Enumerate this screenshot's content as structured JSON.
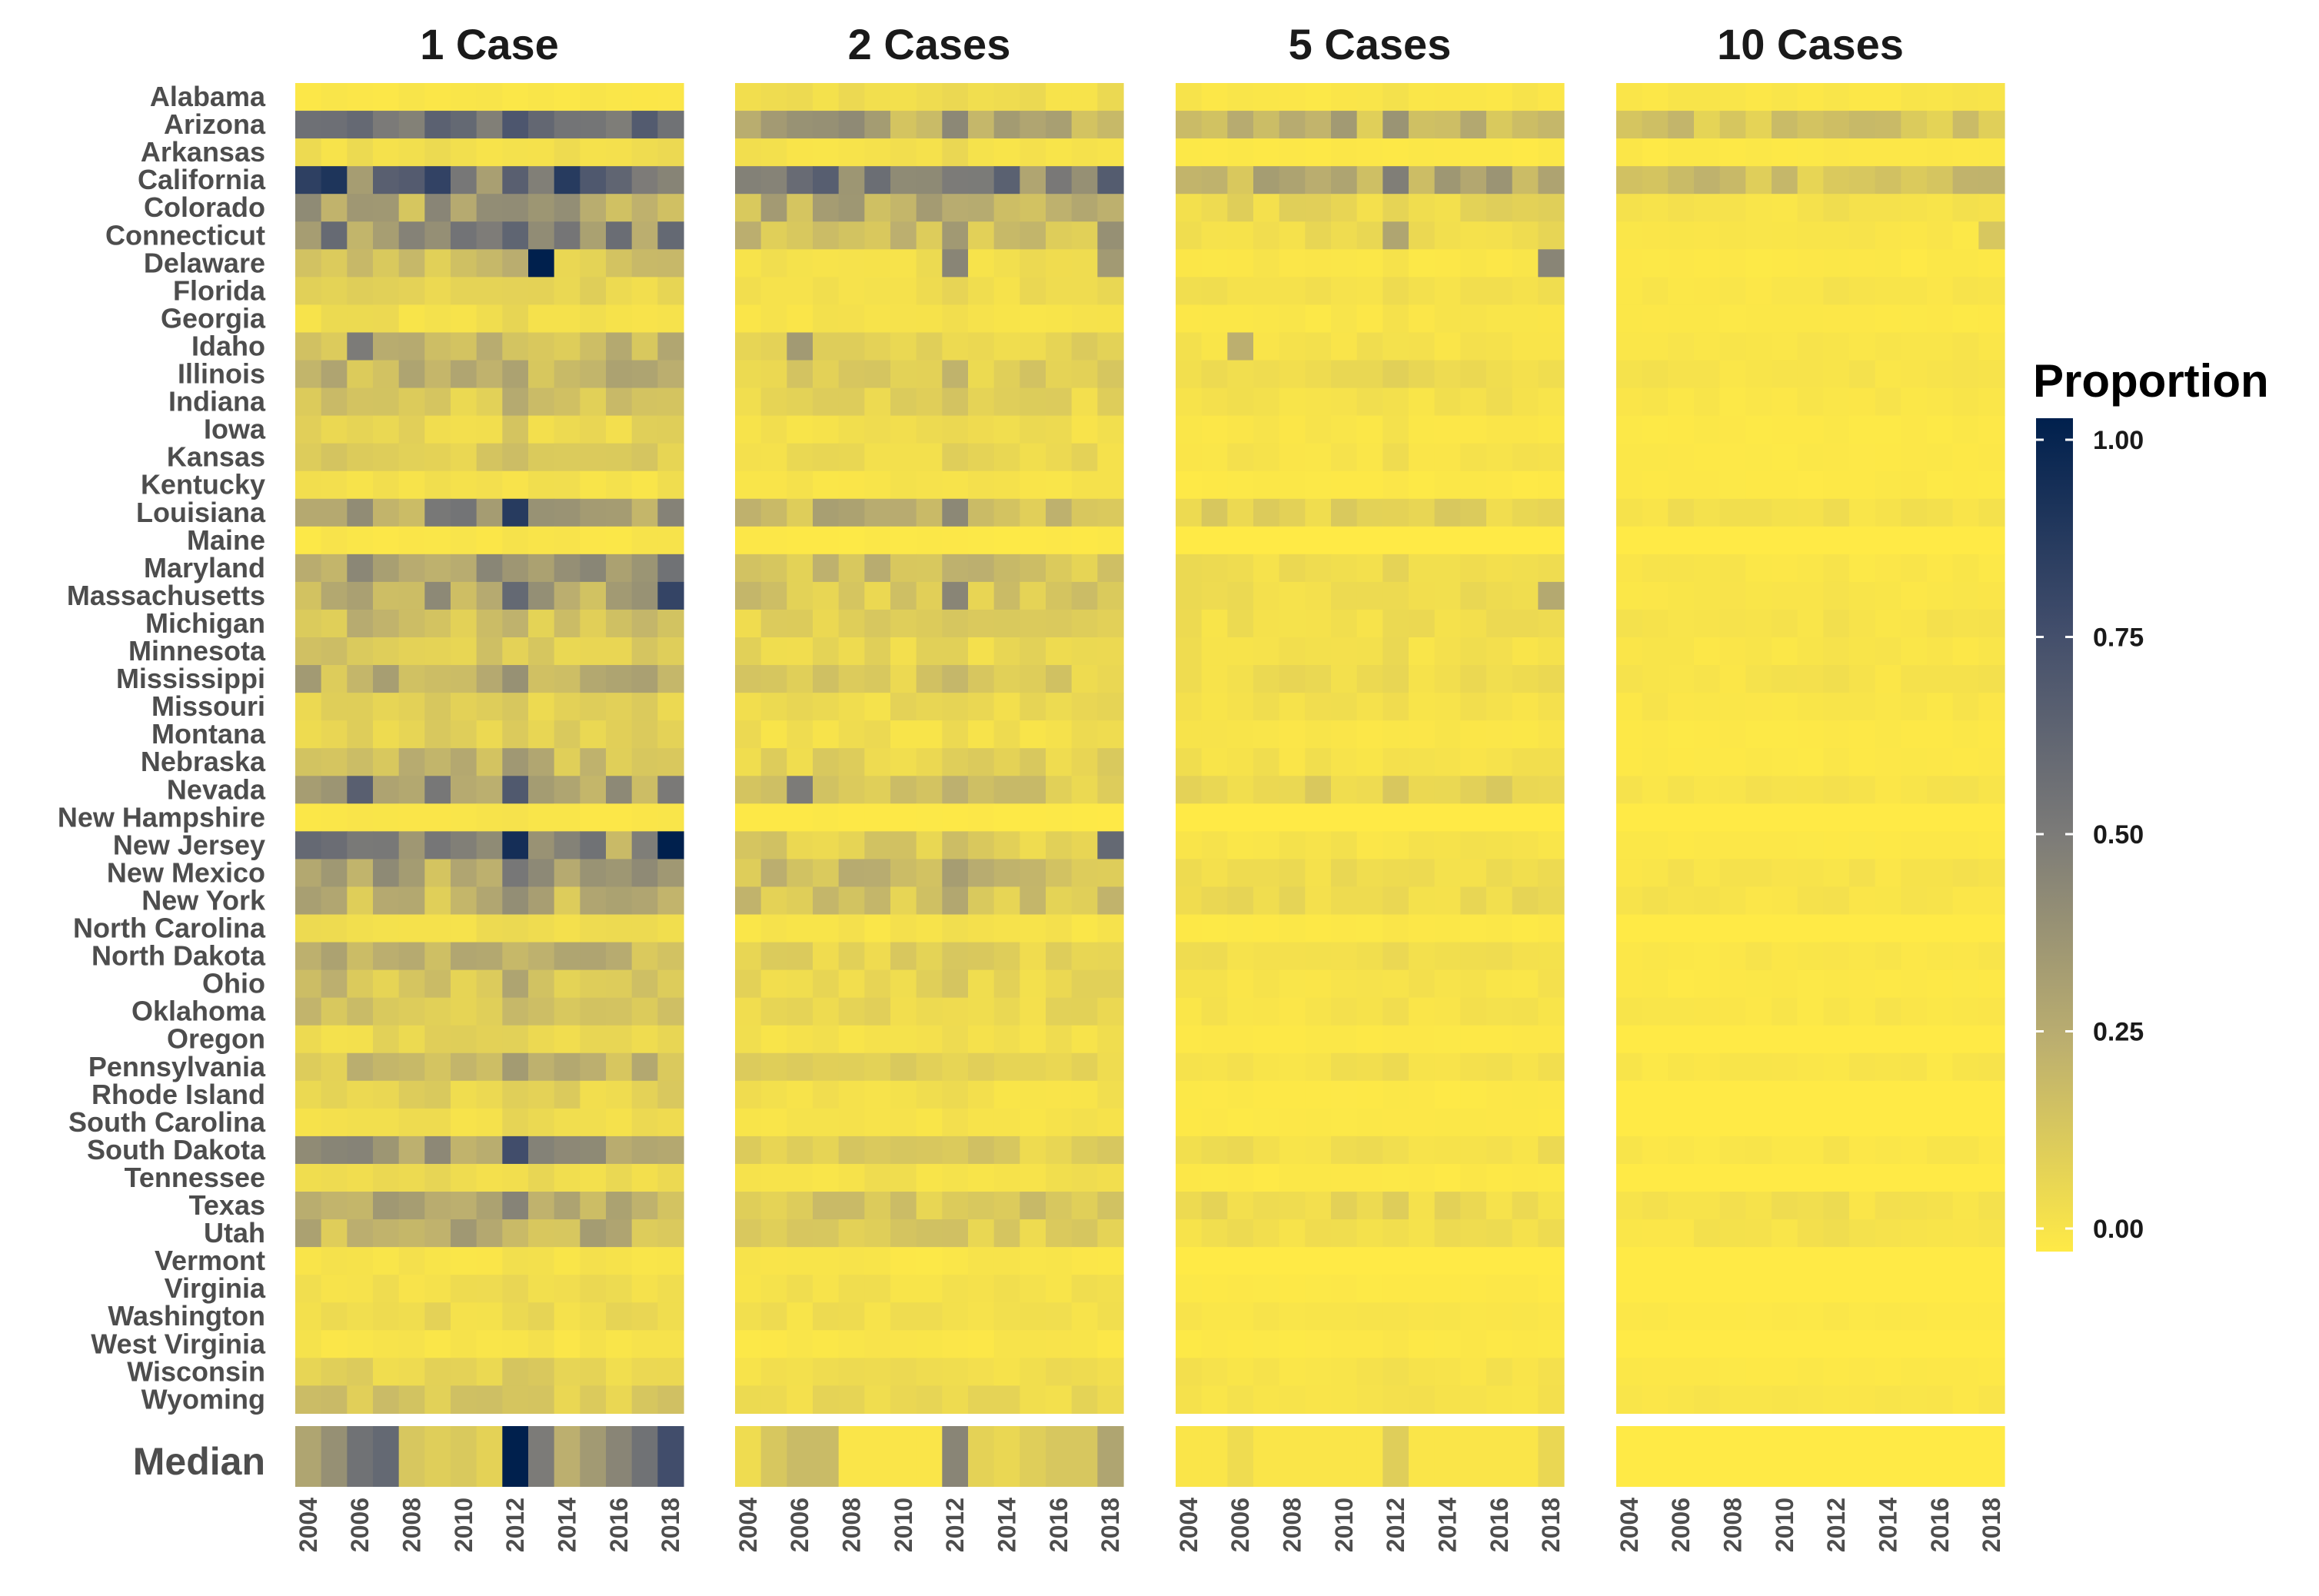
{
  "chart_data": {
    "type": "heatmap",
    "panels": [
      "1 Case",
      "2 Cases",
      "5 Cases",
      "10 Cases"
    ],
    "states": [
      "Alabama",
      "Arizona",
      "Arkansas",
      "California",
      "Colorado",
      "Connecticut",
      "Delaware",
      "Florida",
      "Georgia",
      "Idaho",
      "Illinois",
      "Indiana",
      "Iowa",
      "Kansas",
      "Kentucky",
      "Louisiana",
      "Maine",
      "Maryland",
      "Massachusetts",
      "Michigan",
      "Minnesota",
      "Mississippi",
      "Missouri",
      "Montana",
      "Nebraska",
      "Nevada",
      "New Hampshire",
      "New Jersey",
      "New Mexico",
      "New York",
      "North Carolina",
      "North Dakota",
      "Ohio",
      "Oklahoma",
      "Oregon",
      "Pennsylvania",
      "Rhode Island",
      "South Carolina",
      "South Dakota",
      "Tennessee",
      "Texas",
      "Utah",
      "Vermont",
      "Virginia",
      "Washington",
      "West Virginia",
      "Wisconsin",
      "Wyoming"
    ],
    "median_label": "Median",
    "years": [
      2004,
      2005,
      2006,
      2007,
      2008,
      2009,
      2010,
      2011,
      2012,
      2013,
      2014,
      2015,
      2016,
      2017,
      2018
    ],
    "x_tick_labels": [
      "2004",
      "2006",
      "2008",
      "2010",
      "2012",
      "2014",
      "2016",
      "2018"
    ],
    "legend": {
      "title": "Proportion",
      "ticks": [
        "1.00",
        "0.75",
        "0.50",
        "0.25",
        "0.00"
      ],
      "range": [
        0,
        1
      ],
      "colors": [
        "#FFEA46",
        "#BCAF6F",
        "#7C7B78",
        "#414D6B",
        "#00204D"
      ]
    },
    "state_levels": {
      "1 Case": {
        "Alabama": 0.02,
        "Arizona": 0.45,
        "Arkansas": 0.05,
        "California": 0.6,
        "Colorado": 0.3,
        "Connecticut": 0.4,
        "Delaware": 0.15,
        "Florida": 0.08,
        "Georgia": 0.05,
        "Idaho": 0.2,
        "Illinois": 0.22,
        "Indiana": 0.14,
        "Iowa": 0.08,
        "Kansas": 0.12,
        "Kentucky": 0.04,
        "Louisiana": 0.38,
        "Maine": 0.02,
        "Maryland": 0.3,
        "Massachusetts": 0.3,
        "Michigan": 0.18,
        "Minnesota": 0.14,
        "Mississippi": 0.25,
        "Missouri": 0.1,
        "Montana": 0.1,
        "Nebraska": 0.2,
        "Nevada": 0.35,
        "New Hampshire": 0.02,
        "New Jersey": 0.4,
        "New Mexico": 0.3,
        "New York": 0.22,
        "North Carolina": 0.05,
        "North Dakota": 0.22,
        "Ohio": 0.18,
        "Oklahoma": 0.16,
        "Oregon": 0.08,
        "Pennsylvania": 0.2,
        "Rhode Island": 0.1,
        "South Carolina": 0.05,
        "South Dakota": 0.32,
        "Tennessee": 0.06,
        "Texas": 0.24,
        "Utah": 0.24,
        "Vermont": 0.03,
        "Virginia": 0.05,
        "Washington": 0.07,
        "West Virginia": 0.03,
        "Wisconsin": 0.1,
        "Wyoming": 0.14
      },
      "2 Cases": {
        "Alabama": 0.05,
        "Arizona": 0.3,
        "Arkansas": 0.04,
        "California": 0.45,
        "Colorado": 0.25,
        "Connecticut": 0.18,
        "Delaware": 0.05,
        "Florida": 0.06,
        "Georgia": 0.03,
        "Idaho": 0.1,
        "Illinois": 0.12,
        "Indiana": 0.09,
        "Iowa": 0.05,
        "Kansas": 0.07,
        "Kentucky": 0.03,
        "Louisiana": 0.22,
        "Maine": 0.01,
        "Maryland": 0.18,
        "Massachusetts": 0.15,
        "Michigan": 0.1,
        "Minnesota": 0.08,
        "Mississippi": 0.12,
        "Missouri": 0.07,
        "Montana": 0.05,
        "Nebraska": 0.1,
        "Nevada": 0.14,
        "New Hampshire": 0.01,
        "New Jersey": 0.12,
        "New Mexico": 0.18,
        "New York": 0.16,
        "North Carolina": 0.03,
        "North Dakota": 0.1,
        "Ohio": 0.08,
        "Oklahoma": 0.08,
        "Oregon": 0.04,
        "Pennsylvania": 0.1,
        "Rhode Island": 0.04,
        "South Carolina": 0.03,
        "South Dakota": 0.12,
        "Tennessee": 0.04,
        "Texas": 0.14,
        "Utah": 0.12,
        "Vermont": 0.02,
        "Virginia": 0.04,
        "Washington": 0.05,
        "West Virginia": 0.02,
        "Wisconsin": 0.05,
        "Wyoming": 0.07
      },
      "5 Cases": {
        "Alabama": 0.02,
        "Arizona": 0.22,
        "Arkansas": 0.01,
        "California": 0.25,
        "Colorado": 0.08,
        "Connecticut": 0.06,
        "Delaware": 0.02,
        "Florida": 0.04,
        "Georgia": 0.02,
        "Idaho": 0.04,
        "Illinois": 0.06,
        "Indiana": 0.04,
        "Iowa": 0.02,
        "Kansas": 0.03,
        "Kentucky": 0.01,
        "Louisiana": 0.1,
        "Maine": 0.0,
        "Maryland": 0.05,
        "Massachusetts": 0.06,
        "Michigan": 0.05,
        "Minnesota": 0.04,
        "Mississippi": 0.06,
        "Missouri": 0.04,
        "Montana": 0.02,
        "Nebraska": 0.04,
        "Nevada": 0.1,
        "New Hampshire": 0.0,
        "New Jersey": 0.03,
        "New Mexico": 0.06,
        "New York": 0.07,
        "North Carolina": 0.01,
        "North Dakota": 0.05,
        "Ohio": 0.03,
        "Oklahoma": 0.03,
        "Oregon": 0.01,
        "Pennsylvania": 0.04,
        "Rhode Island": 0.01,
        "South Carolina": 0.01,
        "South Dakota": 0.05,
        "Tennessee": 0.01,
        "Texas": 0.07,
        "Utah": 0.05,
        "Vermont": 0.0,
        "Virginia": 0.01,
        "Washington": 0.02,
        "West Virginia": 0.01,
        "Wisconsin": 0.03,
        "Wyoming": 0.03
      },
      "10 Cases": {
        "Alabama": 0.02,
        "Arizona": 0.15,
        "Arkansas": 0.01,
        "California": 0.16,
        "Colorado": 0.03,
        "Connecticut": 0.02,
        "Delaware": 0.01,
        "Florida": 0.02,
        "Georgia": 0.01,
        "Idaho": 0.02,
        "Illinois": 0.03,
        "Indiana": 0.02,
        "Iowa": 0.01,
        "Kansas": 0.01,
        "Kentucky": 0.01,
        "Louisiana": 0.04,
        "Maine": 0.0,
        "Maryland": 0.02,
        "Massachusetts": 0.02,
        "Michigan": 0.03,
        "Minnesota": 0.02,
        "Mississippi": 0.03,
        "Missouri": 0.02,
        "Montana": 0.01,
        "Nebraska": 0.01,
        "Nevada": 0.03,
        "New Hampshire": 0.0,
        "New Jersey": 0.01,
        "New Mexico": 0.03,
        "New York": 0.03,
        "North Carolina": 0.0,
        "North Dakota": 0.02,
        "Ohio": 0.01,
        "Oklahoma": 0.02,
        "Oregon": 0.0,
        "Pennsylvania": 0.02,
        "Rhode Island": 0.0,
        "South Carolina": 0.0,
        "South Dakota": 0.02,
        "Tennessee": 0.0,
        "Texas": 0.04,
        "Utah": 0.03,
        "Vermont": 0.0,
        "Virginia": 0.0,
        "Washington": 0.01,
        "West Virginia": 0.0,
        "Wisconsin": 0.01,
        "Wyoming": 0.02
      }
    },
    "highlights": {
      "1 Case": [
        [
          "Delaware",
          2013,
          1.0
        ],
        [
          "New Jersey",
          2018,
          1.0
        ],
        [
          "New Jersey",
          2012,
          0.92
        ],
        [
          "Arizona",
          2012,
          0.7
        ],
        [
          "Louisiana",
          2012,
          0.85
        ],
        [
          "Massachusetts",
          2018,
          0.8
        ],
        [
          "Nevada",
          2006,
          0.65
        ],
        [
          "Connecticut",
          2018,
          0.6
        ],
        [
          "South Dakota",
          2012,
          0.75
        ],
        [
          "California",
          2012,
          0.65
        ],
        [
          "California",
          2007,
          0.65
        ],
        [
          "Maryland",
          2018,
          0.55
        ],
        [
          "Massachusetts",
          2012,
          0.6
        ],
        [
          "New Jersey",
          2015,
          0.55
        ],
        [
          "Idaho",
          2006,
          0.5
        ]
      ],
      "2 Cases": [
        [
          "New Jersey",
          2018,
          0.6
        ],
        [
          "Nevada",
          2006,
          0.5
        ],
        [
          "Delaware",
          2012,
          0.45
        ],
        [
          "Massachusetts",
          2012,
          0.45
        ],
        [
          "California",
          2012,
          0.5
        ],
        [
          "Arizona",
          2007,
          0.4
        ],
        [
          "Connecticut",
          2018,
          0.4
        ],
        [
          "Idaho",
          2006,
          0.35
        ],
        [
          "Delaware",
          2018,
          0.35
        ]
      ],
      "5 Cases": [
        [
          "Delaware",
          2018,
          0.45
        ],
        [
          "California",
          2016,
          0.38
        ],
        [
          "Arizona",
          2010,
          0.35
        ],
        [
          "Massachusetts",
          2018,
          0.28
        ],
        [
          "Connecticut",
          2012,
          0.3
        ],
        [
          "Idaho",
          2006,
          0.25
        ]
      ],
      "10 Cases": [
        [
          "California",
          2006,
          0.2
        ],
        [
          "Arizona",
          2010,
          0.2
        ],
        [
          "Connecticut",
          2018,
          0.15
        ]
      ]
    },
    "median": {
      "1 Case": [
        0.3,
        0.4,
        0.55,
        0.6,
        0.15,
        0.12,
        0.14,
        0.1,
        1.0,
        0.5,
        0.25,
        0.35,
        0.45,
        0.55,
        0.75
      ],
      "2 Cases": [
        0.06,
        0.15,
        0.2,
        0.2,
        0.02,
        0.02,
        0.02,
        0.02,
        0.45,
        0.1,
        0.08,
        0.12,
        0.15,
        0.15,
        0.3
      ],
      "5 Cases": [
        0.02,
        0.02,
        0.06,
        0.02,
        0.02,
        0.02,
        0.02,
        0.02,
        0.12,
        0.02,
        0.02,
        0.02,
        0.02,
        0.02,
        0.08
      ],
      "10 Cases": [
        0.0,
        0.0,
        0.0,
        0.0,
        0.0,
        0.0,
        0.0,
        0.0,
        0.0,
        0.0,
        0.0,
        0.0,
        0.0,
        0.0,
        0.0
      ]
    }
  }
}
